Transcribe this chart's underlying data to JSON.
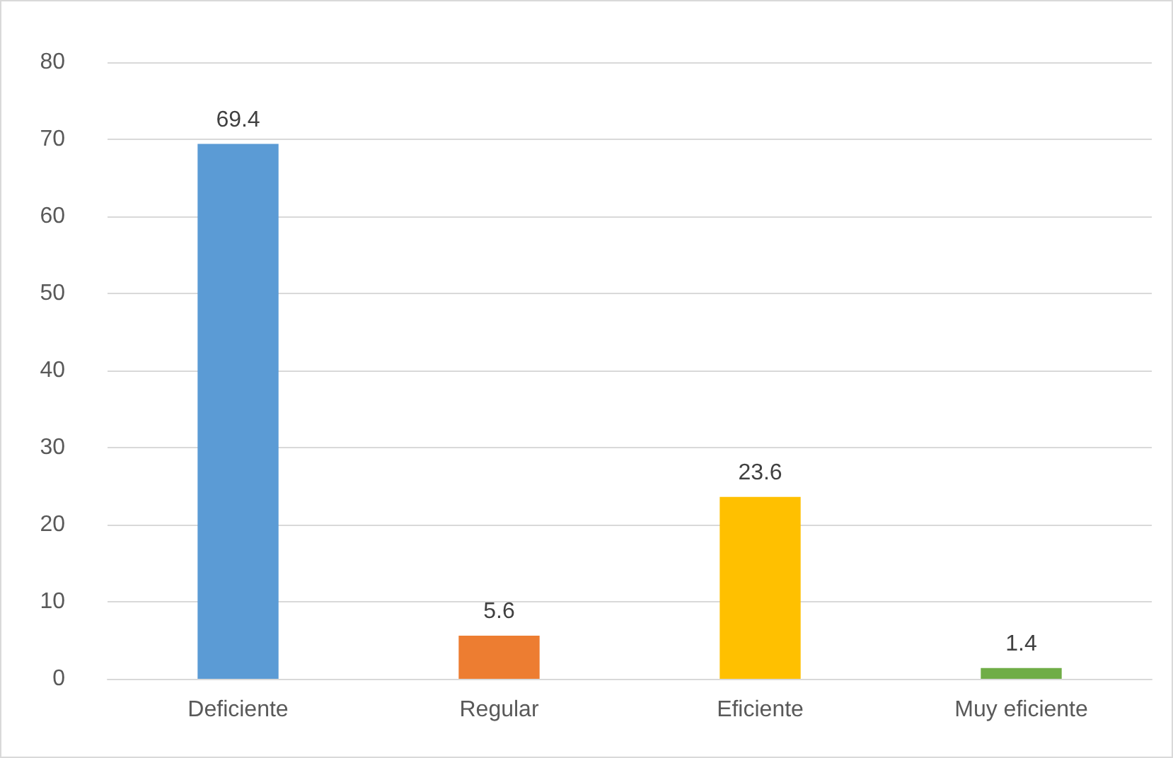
{
  "chart_data": {
    "type": "bar",
    "categories": [
      "Deficiente",
      "Regular",
      "Eficiente",
      "Muy eficiente"
    ],
    "values": [
      69.4,
      5.6,
      23.6,
      1.4
    ],
    "colors": [
      "#5b9bd5",
      "#ed7d31",
      "#ffc000",
      "#70ad47"
    ],
    "ylim": [
      0,
      80
    ],
    "yticks": [
      0,
      10,
      20,
      30,
      40,
      50,
      60,
      70,
      80
    ],
    "grid": "y",
    "data_labels": true
  }
}
